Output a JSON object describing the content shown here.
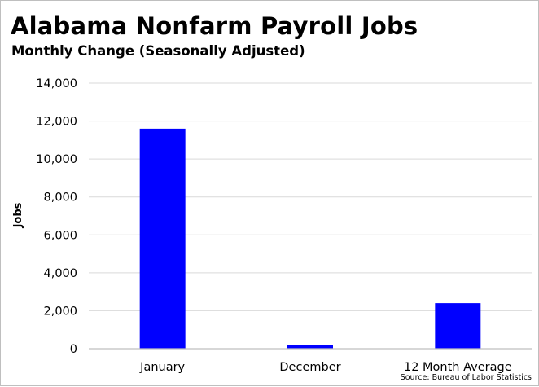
{
  "chart_data": {
    "type": "bar",
    "title": "Alabama Nonfarm Payroll Jobs",
    "subtitle": "Monthly Change (Seasonally Adjusted)",
    "ylabel": "Jobs",
    "xlabel": "",
    "categories": [
      "January",
      "December",
      "12 Month Average"
    ],
    "values": [
      11600,
      200,
      2400
    ],
    "ylim": [
      0,
      14000
    ],
    "yticks": [
      0,
      2000,
      4000,
      6000,
      8000,
      10000,
      12000,
      14000
    ],
    "ytick_labels": [
      "0",
      "2,000",
      "4,000",
      "6,000",
      "8,000",
      "10,000",
      "12,000",
      "14,000"
    ],
    "grid": true,
    "legend": "none",
    "bar_color": "#0000ff",
    "grid_color": "#d9d9d9",
    "source": "Source: Bureau of Labor Statistics"
  }
}
